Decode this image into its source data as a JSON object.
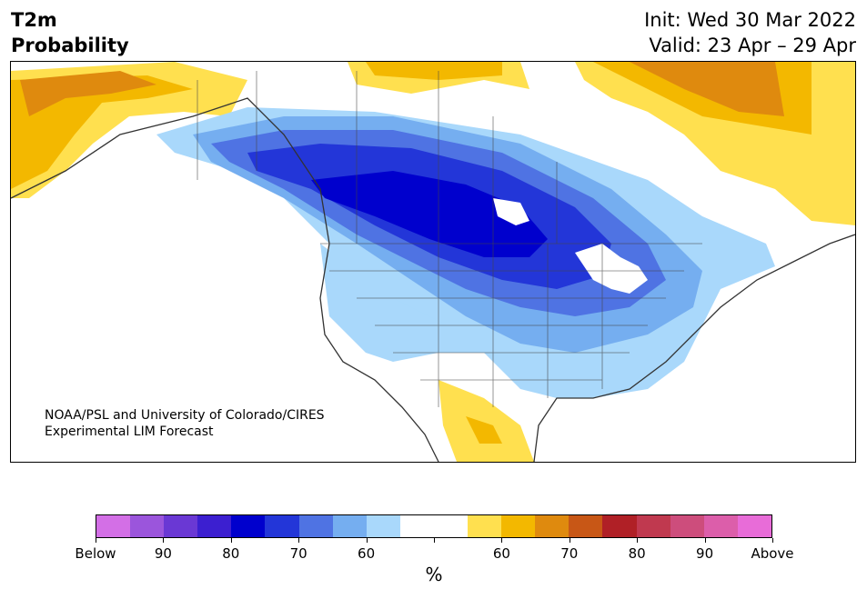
{
  "header": {
    "title_line1": "T2m",
    "title_line2": "Probability",
    "init": "Init: Wed 30 Mar 2022",
    "valid": "Valid: 23 Apr – 29 Apr"
  },
  "map": {
    "region": "North America",
    "credit_line1": "NOAA/PSL and University of Colorado/CIRES",
    "credit_line2": "Experimental LIM Forecast"
  },
  "colorbar": {
    "unit": "%",
    "colors": [
      "#d36fe6",
      "#9b55dc",
      "#6a38d4",
      "#3c1fd0",
      "#0000cd",
      "#2336d8",
      "#4f73e3",
      "#75aef0",
      "#a9d8fb",
      "#ffffff",
      "#ffffff",
      "#ffe04f",
      "#f3b800",
      "#df8a0e",
      "#c85716",
      "#b02026",
      "#c0394f",
      "#cd4d7c",
      "#dc5eaa",
      "#e86cd8"
    ],
    "tick_labels": [
      "Below",
      "90",
      "80",
      "70",
      "60",
      "",
      "60",
      "70",
      "80",
      "90",
      "Above"
    ],
    "colors_meaning": {
      "blue": "probability of below-normal temperature",
      "orange": "probability of above-normal temperature"
    }
  }
}
